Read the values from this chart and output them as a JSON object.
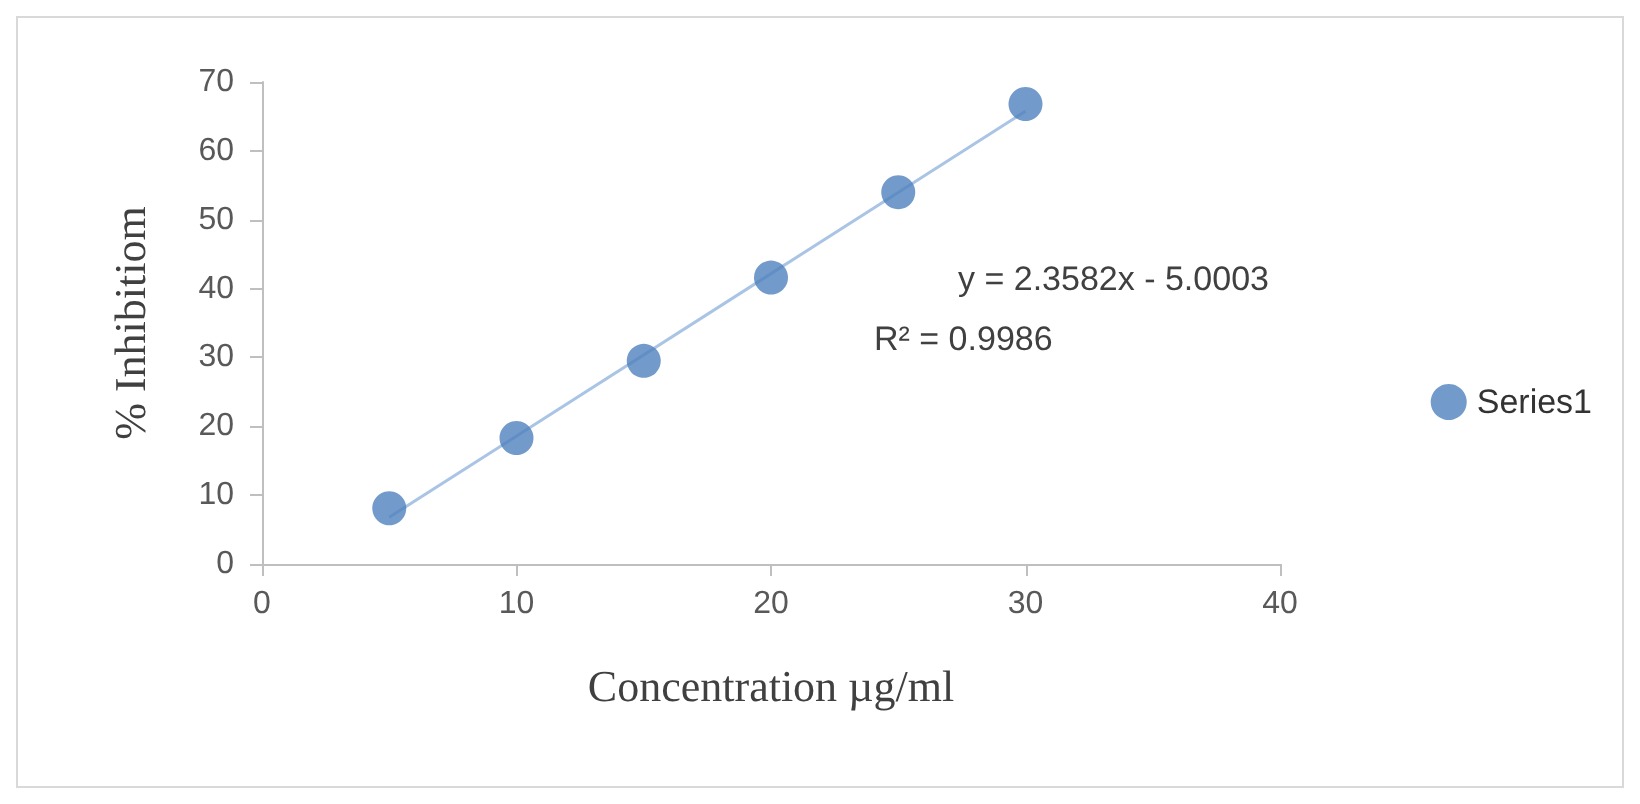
{
  "chart_data": {
    "type": "scatter",
    "xlabel": "Concentration µg/ml",
    "ylabel": "% Inhibitiom",
    "x": [
      5,
      10,
      15,
      20,
      25,
      30
    ],
    "series": [
      {
        "name": "Series1",
        "color": "#4f81bd",
        "values": [
          8.1,
          18.3,
          29.5,
          41.6,
          54.0,
          66.8
        ]
      },
      {
        "type": "line",
        "color": "#a9c4e4",
        "x": [
          5,
          30
        ],
        "values": [
          6.79,
          65.75
        ],
        "marker": "none"
      }
    ],
    "annotations": [
      "y = 2.3582x - 5.0003",
      "R² = 0.9986"
    ],
    "xlim": [
      0,
      40
    ],
    "xticks": [
      0,
      10,
      20,
      30,
      40
    ],
    "ylim": [
      0,
      70
    ],
    "yticks": [
      0,
      10,
      20,
      30,
      40,
      50,
      60,
      70
    ],
    "grid": false,
    "legend": "right",
    "marker": "circle"
  }
}
